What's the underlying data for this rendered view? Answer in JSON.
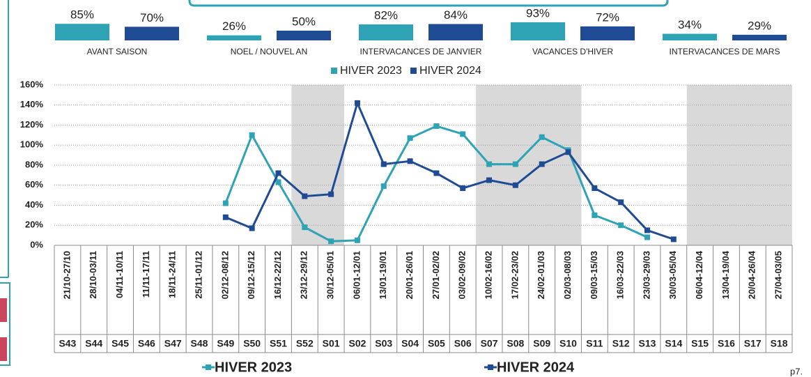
{
  "page_label": "p7.",
  "chart_data": [
    {
      "type": "bar",
      "categories": [
        "AVANT SAISON",
        "NOEL / NOUVEL AN",
        "INTERVACANCES DE JANVIER",
        "VACANCES D'HIVER",
        "INTERVACANCES DE MARS"
      ],
      "series": [
        {
          "name": "HIVER 2023",
          "color": "#2ea3b6",
          "values": [
            85,
            26,
            82,
            93,
            34
          ],
          "value_labels": [
            "85%",
            "26%",
            "82%",
            "93%",
            "34%"
          ]
        },
        {
          "name": "HIVER 2024",
          "color": "#1f4a94",
          "values": [
            70,
            50,
            84,
            72,
            29
          ],
          "value_labels": [
            "70%",
            "50%",
            "84%",
            "72%",
            "29%"
          ]
        }
      ]
    },
    {
      "type": "line",
      "categories": [
        "21/10-27/10",
        "28/10-03/11",
        "04/11-10/11",
        "11/11-17/11",
        "18/11-24/11",
        "25/11-01/12",
        "02/12-08/12",
        "09/12-15/12",
        "16/12-22/12",
        "23/12-29/12",
        "30/12-05/01",
        "06/01-12/01",
        "13/01-19/01",
        "20/01-26/01",
        "27/01-02/02",
        "03/02-09/02",
        "10/02-16/02",
        "17/02-23/02",
        "24/02-01/03",
        "02/03-08/03",
        "09/03-15/03",
        "16/03-22/03",
        "23/03-29/03",
        "30/03-05/04",
        "06/04-12/04",
        "13/04-19/04",
        "20/04-26/04",
        "27/04-03/05"
      ],
      "weeks": [
        "S43",
        "S44",
        "S45",
        "S46",
        "S47",
        "S48",
        "S49",
        "S50",
        "S51",
        "S52",
        "S01",
        "S02",
        "S03",
        "S04",
        "S05",
        "S06",
        "S07",
        "S08",
        "S09",
        "S10",
        "S11",
        "S12",
        "S13",
        "S14",
        "S15",
        "S16",
        "S17",
        "S18"
      ],
      "series": [
        {
          "name": "HIVER 2023",
          "color": "#2ea3b6",
          "values": [
            null,
            null,
            null,
            null,
            null,
            null,
            42,
            110,
            63,
            18,
            4,
            5,
            59,
            107,
            119,
            111,
            81,
            81,
            108,
            95,
            30,
            20,
            8,
            null,
            null,
            null,
            null,
            null
          ]
        },
        {
          "name": "HIVER 2024",
          "color": "#1f4a94",
          "values": [
            null,
            null,
            null,
            null,
            null,
            null,
            28,
            17,
            72,
            49,
            51,
            142,
            81,
            84,
            72,
            57,
            65,
            60,
            81,
            93,
            57,
            43,
            15,
            6,
            null,
            null,
            null,
            null
          ]
        }
      ],
      "ylim": [
        0,
        160
      ],
      "yticks": [
        {
          "value": 0,
          "label": "0%"
        },
        {
          "value": 20,
          "label": "20%"
        },
        {
          "value": 40,
          "label": "40%"
        },
        {
          "value": 60,
          "label": "60%"
        },
        {
          "value": 80,
          "label": "80%"
        },
        {
          "value": 100,
          "label": "100%"
        },
        {
          "value": 120,
          "label": "120%"
        },
        {
          "value": 140,
          "label": "140%"
        },
        {
          "value": 160,
          "label": "160%"
        }
      ],
      "grid": true
    }
  ]
}
